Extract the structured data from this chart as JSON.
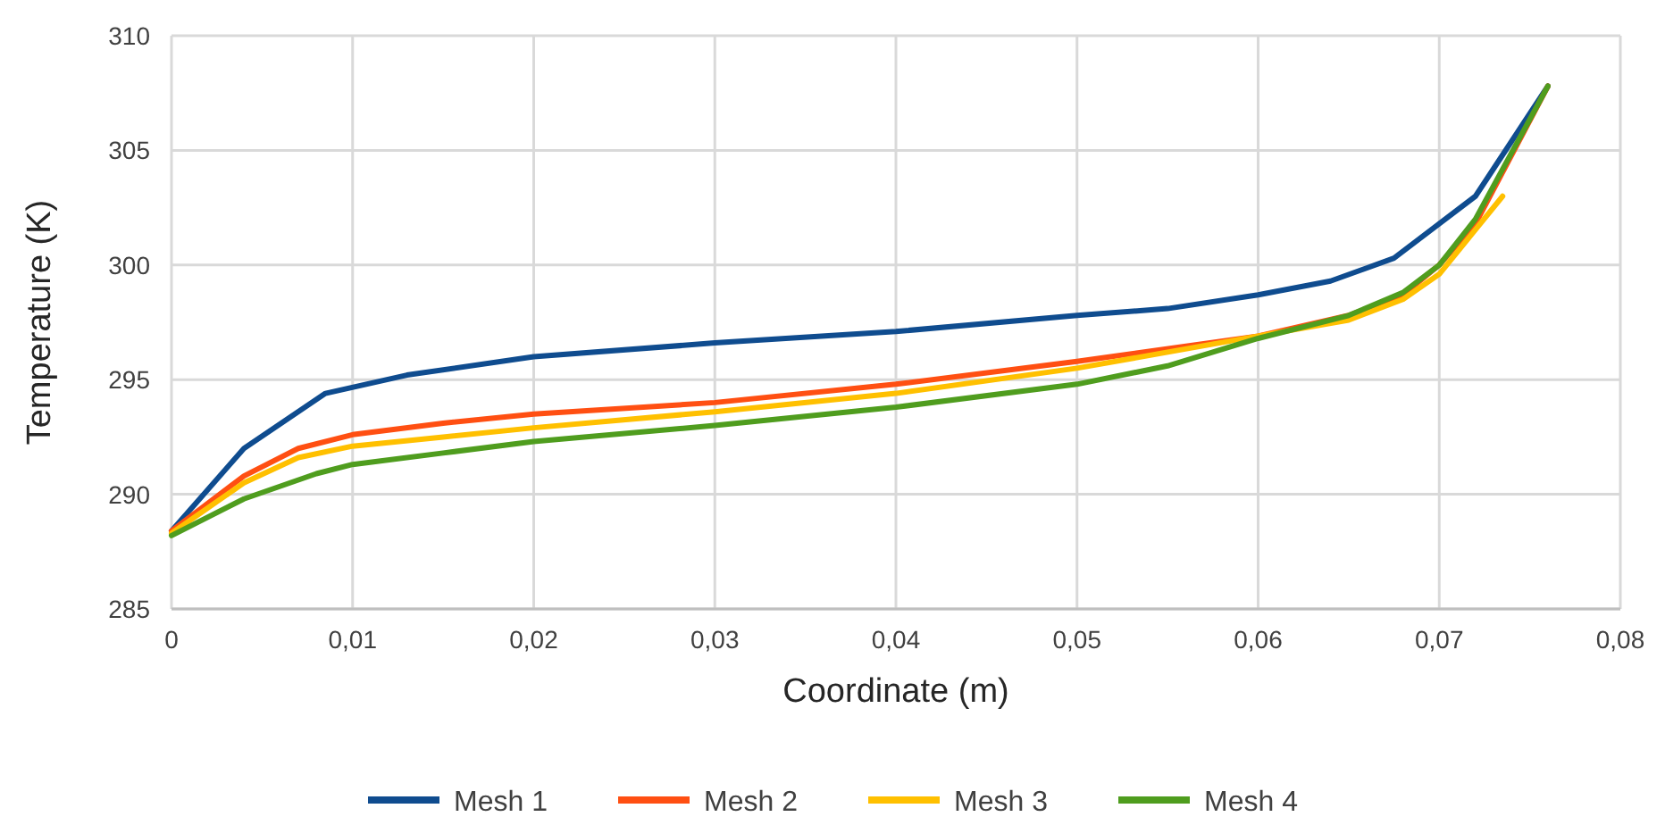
{
  "chart_data": {
    "type": "line",
    "xlabel": "Coordinate (m)",
    "ylabel": "Temperature (K)",
    "xlim": [
      0,
      0.08
    ],
    "ylim": [
      285,
      310
    ],
    "xticks": [
      0,
      {
        "value": 0.01,
        "label": "0,01"
      },
      {
        "value": 0.02,
        "label": "0,02"
      },
      {
        "value": 0.03,
        "label": "0,03"
      },
      {
        "value": 0.04,
        "label": "0,04"
      },
      {
        "value": 0.05,
        "label": "0,05"
      },
      {
        "value": 0.06,
        "label": "0,06"
      },
      {
        "value": 0.07,
        "label": "0,07"
      },
      {
        "value": 0.08,
        "label": "0,08"
      }
    ],
    "yticks": [
      285,
      290,
      295,
      300,
      305,
      310
    ],
    "grid": true,
    "legend": "bottom",
    "marker": "none",
    "line_style": "solid",
    "series": [
      {
        "name": "Mesh 1",
        "color": "#0f4c8f",
        "x": [
          0,
          0.004,
          0.0085,
          0.013,
          0.02,
          0.03,
          0.04,
          0.05,
          0.055,
          0.06,
          0.064,
          0.0675,
          0.072,
          0.076
        ],
        "values": [
          288.4,
          292,
          294.4,
          295.2,
          296,
          296.6,
          297.1,
          297.8,
          298.1,
          298.7,
          299.3,
          300.3,
          303,
          307.8
        ]
      },
      {
        "name": "Mesh 2",
        "color": "#ff4f12",
        "x": [
          0,
          0.004,
          0.007,
          0.01,
          0.015,
          0.02,
          0.03,
          0.04,
          0.05,
          0.06,
          0.065,
          0.068,
          0.07,
          0.072,
          0.076
        ],
        "values": [
          288.4,
          290.8,
          292,
          292.6,
          293.1,
          293.5,
          294,
          294.8,
          295.8,
          296.9,
          297.8,
          298.7,
          300,
          301.8,
          307.8
        ]
      },
      {
        "name": "Mesh 3",
        "color": "#ffc000",
        "x": [
          0,
          0.004,
          0.007,
          0.01,
          0.015,
          0.02,
          0.03,
          0.04,
          0.05,
          0.06,
          0.065,
          0.068,
          0.07,
          0.0735
        ],
        "values": [
          288.3,
          290.5,
          291.6,
          292.1,
          292.5,
          292.9,
          293.6,
          294.4,
          295.5,
          296.9,
          297.6,
          298.5,
          299.6,
          303
        ]
      },
      {
        "name": "Mesh 4",
        "color": "#4f9d1e",
        "x": [
          0,
          0.004,
          0.008,
          0.01,
          0.015,
          0.02,
          0.03,
          0.04,
          0.05,
          0.055,
          0.06,
          0.065,
          0.068,
          0.07,
          0.072,
          0.076
        ],
        "values": [
          288.2,
          289.8,
          290.9,
          291.3,
          291.8,
          292.3,
          293,
          293.8,
          294.8,
          295.6,
          296.8,
          297.8,
          298.8,
          300,
          302,
          307.8
        ]
      }
    ]
  }
}
